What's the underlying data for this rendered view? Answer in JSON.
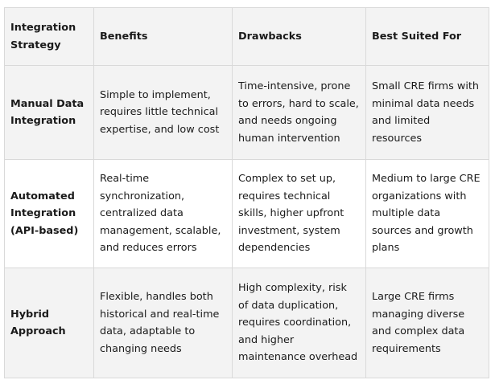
{
  "table": {
    "headers": [
      "Integration Strategy",
      "Benefits",
      "Drawbacks",
      "Best Suited For"
    ],
    "rows": [
      {
        "strategy": "Manual Data Integration",
        "benefits": "Simple to implement, requires little technical expertise, and low cost",
        "drawbacks": "Time-intensive, prone to errors, hard to scale, and needs ongoing human intervention",
        "best_suited_for": "Small CRE firms with minimal data needs and limited resources"
      },
      {
        "strategy": "Automated Integration (API-based)",
        "benefits": "Real-time synchronization, centralized data management, scalable, and reduces errors",
        "drawbacks": "Complex to set up, requires technical skills, higher upfront investment, system dependencies",
        "best_suited_for": "Medium to large CRE organizations with multiple data sources and growth plans"
      },
      {
        "strategy": "Hybrid Approach",
        "benefits": "Flexible, handles both historical and real-time data, adaptable to changing needs",
        "drawbacks": "High complexity, risk of data duplication, requires coordination, and higher maintenance overhead",
        "best_suited_for": "Large CRE firms managing diverse and complex data requirements"
      }
    ]
  }
}
